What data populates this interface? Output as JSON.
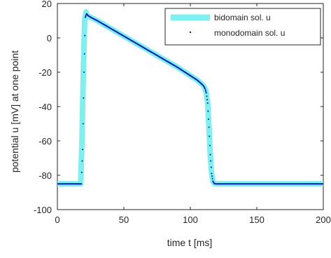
{
  "chart_data": {
    "type": "line",
    "title": "",
    "xlabel": "time t [ms]",
    "ylabel": "potential u [mV] at one point",
    "xlim": [
      0,
      200
    ],
    "ylim": [
      -100,
      20
    ],
    "xticks": [
      0,
      50,
      100,
      150,
      200
    ],
    "yticks": [
      -100,
      -80,
      -60,
      -40,
      -20,
      0,
      20
    ],
    "xtick_labels": [
      "0",
      "50",
      "100",
      "150",
      "200"
    ],
    "ytick_labels": [
      "-100",
      "-80",
      "-60",
      "-40",
      "-20",
      "0",
      "20"
    ],
    "grid": false,
    "legend_position": "top-right",
    "colors": {
      "bidomain": "#7ef0f0",
      "monodomain": "#0a1fb8",
      "axes": "#262626"
    },
    "series": [
      {
        "name": "bidomain sol. u",
        "style": "thick line",
        "x": [
          0,
          17.5,
          18.5,
          19.5,
          20.5,
          21.5,
          22.5,
          25,
          30,
          40,
          50,
          60,
          70,
          80,
          90,
          100,
          105,
          108,
          110,
          111,
          112,
          113,
          114,
          115,
          116,
          117,
          118,
          119,
          120,
          130,
          150,
          200
        ],
        "y": [
          -85,
          -85,
          -60,
          -20,
          10,
          15,
          13,
          12,
          10,
          5.5,
          1,
          -3.5,
          -8,
          -12.5,
          -17,
          -22,
          -24.5,
          -26.5,
          -28,
          -29.5,
          -32,
          -38,
          -52,
          -68,
          -79,
          -83.5,
          -84.8,
          -85,
          -85,
          -85,
          -85,
          -85
        ]
      },
      {
        "name": "monodomain sol. u",
        "style": "dotted",
        "x": [
          0,
          18,
          19,
          20,
          21,
          22,
          23,
          25,
          30,
          40,
          50,
          60,
          70,
          80,
          90,
          100,
          105,
          108,
          110,
          111,
          112,
          113,
          114,
          115,
          116,
          117,
          118,
          119,
          120,
          130,
          150,
          200
        ],
        "y": [
          -85,
          -85,
          -65,
          -20,
          12,
          14,
          13,
          12,
          10,
          5.5,
          1,
          -3.5,
          -8,
          -12.5,
          -17,
          -22,
          -24.5,
          -26.5,
          -28,
          -29.5,
          -32,
          -38,
          -52,
          -68,
          -79,
          -83.5,
          -84.8,
          -85,
          -85,
          -85,
          -85,
          -85
        ]
      }
    ]
  }
}
